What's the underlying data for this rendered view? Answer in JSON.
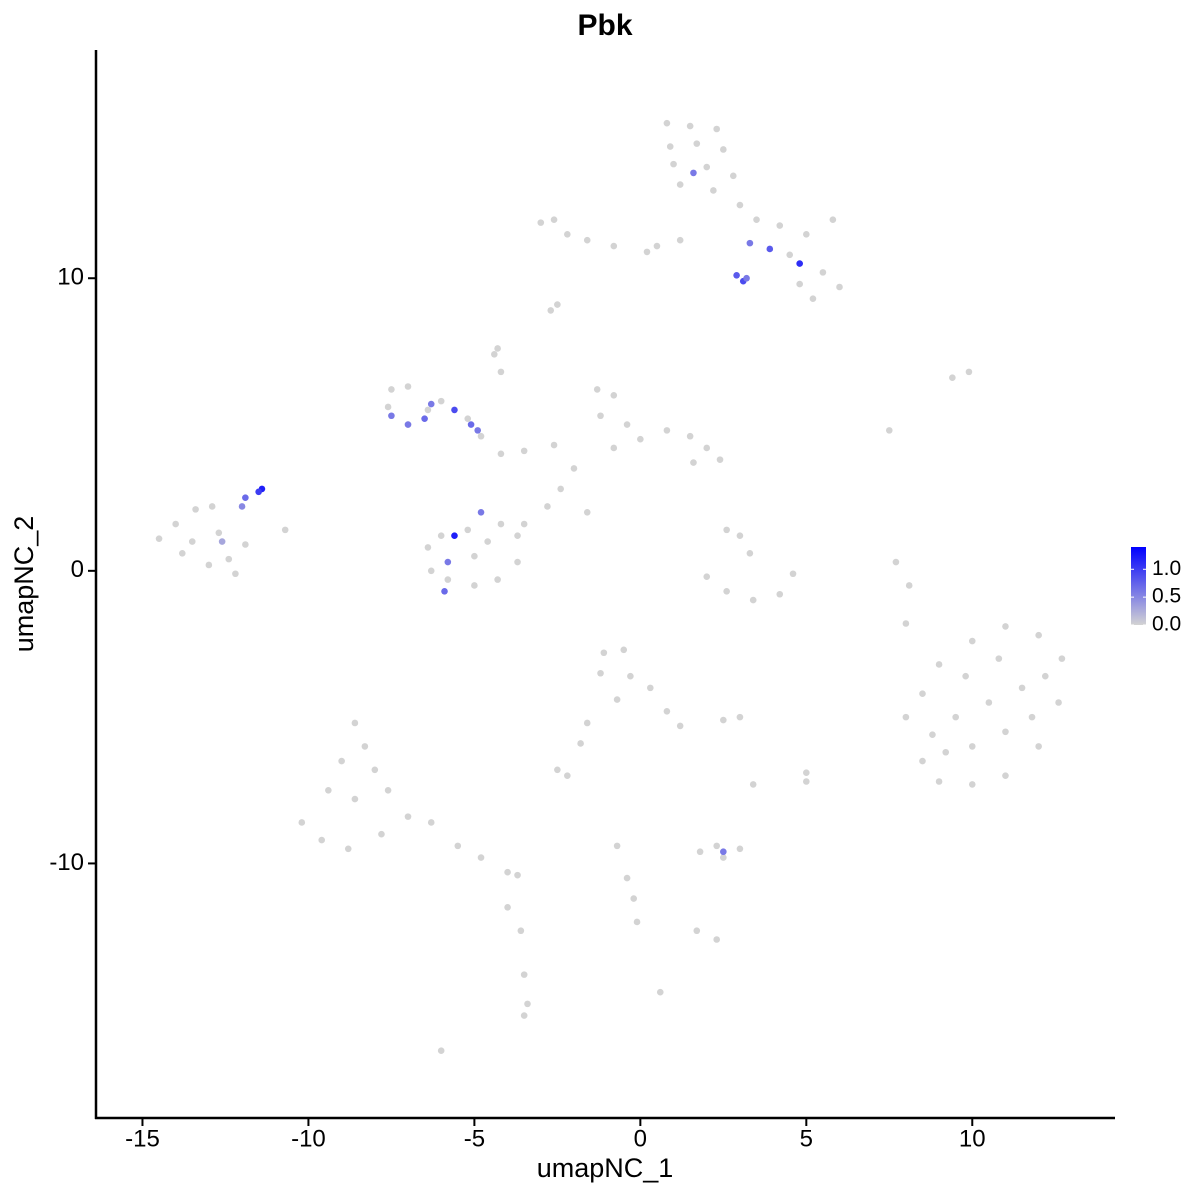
{
  "chart_data": {
    "type": "scatter",
    "title": "Pbk",
    "x_label": "umapNC_1",
    "y_label": "umapNC_2",
    "xlim": [
      -16.4,
      14.3
    ],
    "ylim": [
      -18.7,
      17.8
    ],
    "xticks": [
      -15,
      -10,
      -5,
      0,
      5,
      10
    ],
    "yticks": [
      -10,
      0,
      10
    ],
    "color_low": "#d3d3d3",
    "color_high": "#0000ff",
    "clim": [
      0,
      1.4
    ],
    "cticks": [
      {
        "value": 0,
        "label": "0.0"
      },
      {
        "value": 0.5,
        "label": "0.5"
      },
      {
        "value": 1,
        "label": "1.0"
      }
    ],
    "x": [
      0.8,
      1.5,
      2.3,
      0.9,
      1.7,
      2.5,
      1.0,
      2.0,
      2.8,
      1.2,
      2.2,
      3.0,
      3.5,
      4.2,
      5.0,
      5.8,
      4.5,
      5.5,
      6.0,
      5.2,
      4.8,
      -3.0,
      -2.6,
      -2.2,
      -1.6,
      -0.8,
      0.5,
      1.2,
      0.2,
      -2.7,
      -2.5,
      -7.5,
      -7.0,
      -7.6,
      -7.0,
      -6.4,
      -6.0,
      -5.2,
      -4.8,
      -4.2,
      -3.5,
      -2.6,
      -4.4,
      -4.2,
      -4.3,
      -1.3,
      -0.8,
      -1.2,
      -0.4,
      0.0,
      -0.8,
      0.8,
      1.5,
      2.0,
      1.6,
      2.4,
      -2.0,
      -2.4,
      -1.6,
      -2.8,
      -3.5,
      -6.4,
      -6.0,
      -5.2,
      -4.2,
      -3.7,
      -3.7,
      -4.3,
      -5.0,
      -5.8,
      -6.3,
      -5.0,
      -4.6,
      -14.5,
      -14.0,
      -13.4,
      -12.9,
      -13.8,
      -13.0,
      -12.4,
      -12.2,
      -13.5,
      -12.7,
      -11.9,
      -10.7,
      2.0,
      2.6,
      3.4,
      4.2,
      4.6,
      3.0,
      3.3,
      2.6,
      8.0,
      8.5,
      9.0,
      10.0,
      11.0,
      12.0,
      12.6,
      12.7,
      12.0,
      11.0,
      10.0,
      9.0,
      8.5,
      9.5,
      10.5,
      11.5,
      10.0,
      11.0,
      9.2,
      10.8,
      9.8,
      11.8,
      8.8,
      12.2,
      8.1,
      7.7,
      8.0,
      9.4,
      9.9,
      7.5,
      -1.1,
      -0.5,
      -1.2,
      -0.3,
      0.3,
      -0.7,
      0.8,
      1.2,
      -1.6,
      -1.8,
      -2.5,
      -2.2,
      2.5,
      3.0,
      -8.6,
      -8.3,
      -9.0,
      -8.0,
      -9.4,
      -8.6,
      -7.6,
      -10.2,
      -9.6,
      -8.8,
      -7.8,
      -7.0,
      -6.3,
      -5.5,
      -4.8,
      -4.0,
      -3.7,
      -4.0,
      -3.6,
      -3.5,
      -3.4,
      -3.5,
      -6.0,
      1.8,
      2.3,
      3.0,
      2.5,
      2.3,
      1.7,
      -0.7,
      -0.4,
      -0.2,
      -0.1,
      0.6,
      3.4,
      5.0,
      5.0,
      -11.4,
      -11.5,
      -11.9,
      -12.0,
      -12.6,
      -5.6,
      -4.8,
      -5.8,
      -5.9,
      -7.5,
      -7.0,
      -6.5,
      -6.3,
      -5.6,
      -5.1,
      -4.9,
      1.6,
      3.3,
      3.9,
      4.8,
      2.9,
      3.1,
      3.2,
      2.5
    ],
    "y": [
      15.3,
      15.2,
      15.1,
      14.5,
      14.6,
      14.4,
      13.9,
      13.8,
      13.5,
      13.2,
      13.0,
      12.5,
      12.0,
      11.8,
      11.5,
      12.0,
      10.8,
      10.2,
      9.7,
      9.3,
      9.8,
      11.9,
      12.0,
      11.5,
      11.3,
      11.1,
      11.1,
      11.3,
      10.9,
      8.9,
      9.1,
      6.2,
      6.3,
      5.6,
      5.0,
      5.5,
      5.8,
      5.2,
      4.6,
      4.0,
      4.1,
      4.3,
      7.4,
      6.8,
      7.6,
      6.2,
      6.0,
      5.3,
      5.0,
      4.5,
      4.2,
      4.8,
      4.6,
      4.2,
      3.7,
      3.8,
      3.5,
      2.8,
      2.0,
      2.2,
      1.6,
      0.8,
      1.2,
      1.4,
      1.6,
      1.2,
      0.3,
      -0.3,
      -0.5,
      -0.3,
      0.0,
      0.5,
      1.0,
      1.1,
      1.6,
      2.1,
      2.2,
      0.6,
      0.2,
      0.4,
      -0.1,
      1.0,
      1.3,
      0.9,
      1.4,
      -0.2,
      -0.7,
      -1.0,
      -0.8,
      -0.1,
      1.2,
      0.6,
      1.4,
      -5.0,
      -6.5,
      -7.2,
      -7.3,
      -7.0,
      -6.0,
      -4.5,
      -3.0,
      -2.2,
      -1.9,
      -2.4,
      -3.2,
      -4.2,
      -5.0,
      -4.5,
      -4.0,
      -6.0,
      -5.5,
      -6.2,
      -3.0,
      -3.6,
      -5.0,
      -5.6,
      -3.6,
      -0.5,
      0.3,
      -1.8,
      6.6,
      6.8,
      4.8,
      -2.8,
      -2.7,
      -3.5,
      -3.6,
      -4.0,
      -4.4,
      -4.8,
      -5.3,
      -5.2,
      -5.9,
      -6.8,
      -7.0,
      -5.1,
      -5.0,
      -5.2,
      -6.0,
      -6.5,
      -6.8,
      -7.5,
      -7.8,
      -7.5,
      -8.6,
      -9.2,
      -9.5,
      -9.0,
      -8.4,
      -8.6,
      -9.4,
      -9.8,
      -10.3,
      -10.4,
      -11.5,
      -12.3,
      -13.8,
      -14.8,
      -15.2,
      -16.4,
      -9.6,
      -9.4,
      -9.5,
      -9.8,
      -12.6,
      -12.3,
      -9.4,
      -10.5,
      -11.2,
      -12.0,
      -14.4,
      -7.3,
      -7.2,
      -6.9,
      2.8,
      2.7,
      2.5,
      2.2,
      1.0,
      1.2,
      2.0,
      0.3,
      -0.7,
      5.3,
      5.0,
      5.2,
      5.7,
      5.5,
      5.0,
      4.8,
      13.6,
      11.2,
      11.0,
      10.5,
      10.1,
      9.9,
      10.0,
      -9.6
    ],
    "values": [
      0,
      0,
      0,
      0,
      0,
      0,
      0,
      0,
      0,
      0,
      0,
      0,
      0,
      0,
      0,
      0,
      0,
      0,
      0,
      0,
      0,
      0,
      0,
      0,
      0,
      0,
      0,
      0,
      0,
      0,
      0,
      0,
      0,
      0,
      0,
      0,
      0,
      0,
      0,
      0,
      0,
      0,
      0,
      0,
      0,
      0,
      0,
      0,
      0,
      0,
      0,
      0,
      0,
      0,
      0,
      0,
      0,
      0,
      0,
      0,
      0,
      0,
      0,
      0,
      0,
      0,
      0,
      0,
      0,
      0,
      0,
      0,
      0,
      0,
      0,
      0,
      0,
      0,
      0,
      0,
      0,
      0,
      0,
      0,
      0,
      0,
      0,
      0,
      0,
      0,
      0,
      0,
      0,
      0,
      0,
      0,
      0,
      0,
      0,
      0,
      0,
      0,
      0,
      0,
      0,
      0,
      0,
      0,
      0,
      0,
      0,
      0,
      0,
      0,
      0,
      0,
      0,
      0,
      0,
      0,
      0,
      0,
      0,
      0,
      0,
      0,
      0,
      0,
      0,
      0,
      0,
      0,
      0,
      0,
      0,
      0,
      0,
      0,
      0,
      0,
      0,
      0,
      0,
      0,
      0,
      0,
      0,
      0,
      0,
      0,
      0,
      0,
      0,
      0,
      0,
      0,
      0,
      0,
      0,
      0,
      0,
      0,
      0,
      0,
      0,
      0,
      0,
      0,
      0,
      0,
      0,
      0,
      0,
      0,
      1.2,
      1.0,
      0.7,
      0.5,
      0.3,
      1.2,
      0.6,
      0.6,
      0.7,
      0.6,
      0.6,
      0.7,
      0.6,
      0.9,
      0.7,
      0.6,
      0.6,
      0.6,
      0.8,
      1.1,
      0.8,
      0.9,
      0.6,
      0.6
    ]
  }
}
